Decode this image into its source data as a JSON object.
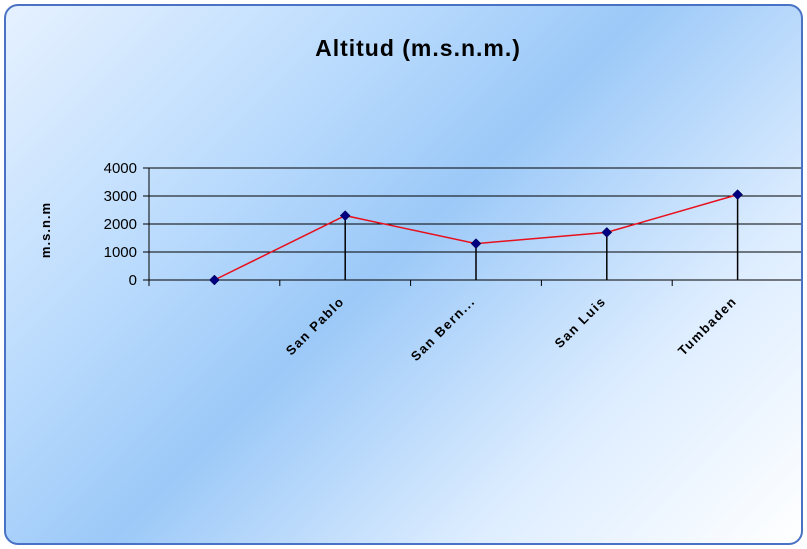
{
  "chart_data": {
    "type": "line",
    "title": "Altitud (m.s.n.m.)",
    "xlabel": "",
    "ylabel": "m.s.n.m",
    "categories": [
      "",
      "San Pablo",
      "San Bern...",
      "San Luis",
      "Tumbaden"
    ],
    "values": [
      0,
      2300,
      1300,
      1700,
      3050
    ],
    "ylim": [
      0,
      4000
    ],
    "yticks": [
      0,
      1000,
      2000,
      3000,
      4000
    ],
    "grid": true,
    "drop_lines": true,
    "legend": "none",
    "colors": {
      "line": "#e8101c",
      "marker": "#000080",
      "drop_line": "#000000",
      "gridline": "#000000",
      "border": "#4a72c4"
    }
  }
}
